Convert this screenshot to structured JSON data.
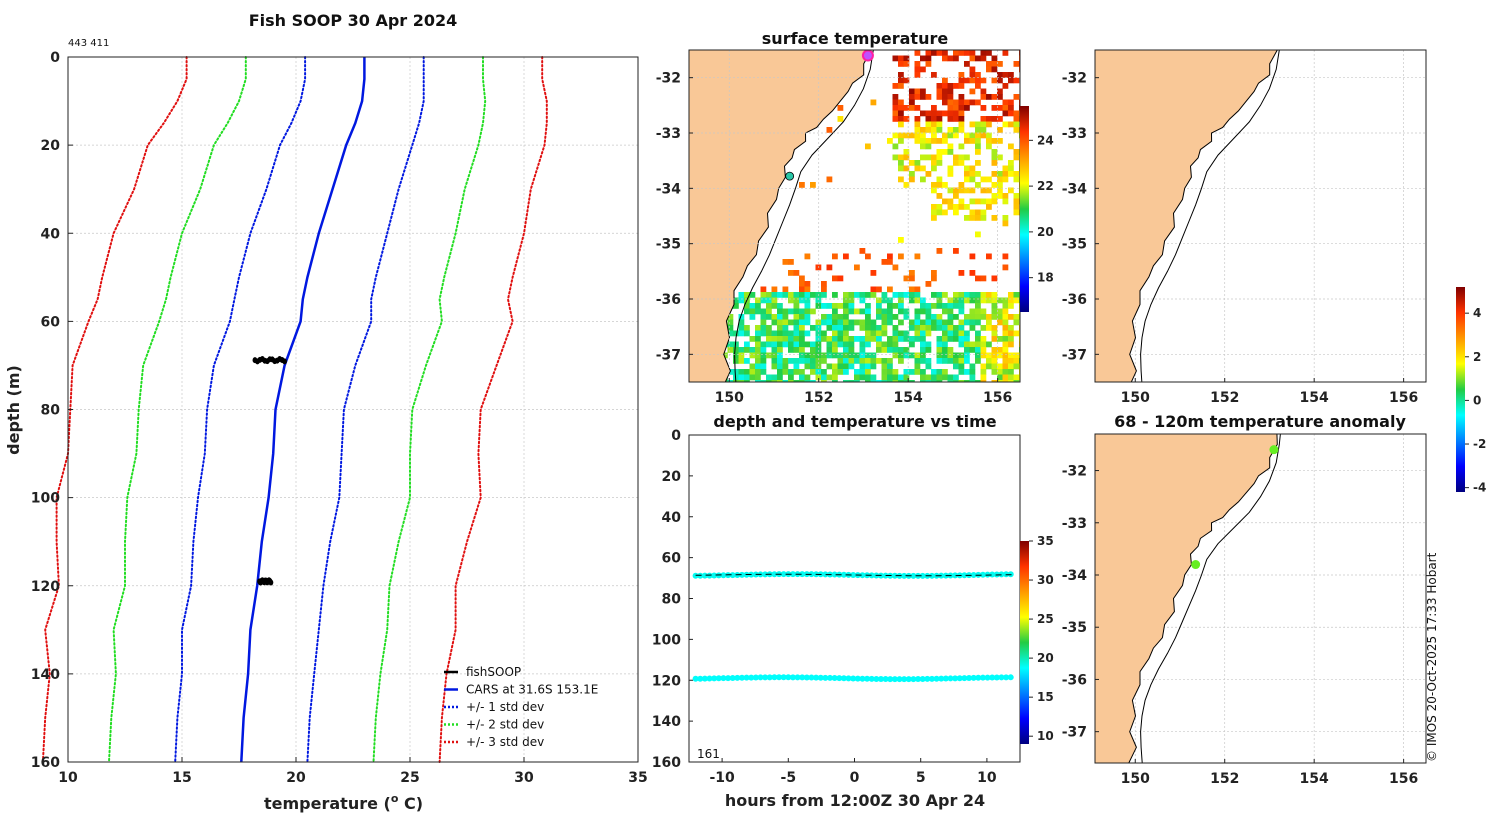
{
  "page": {
    "title": "Fish SOOP 30 Apr 2024",
    "id_text": "443 411",
    "copyright": "© IMOS 20-Oct-2025 17:33 Hobart"
  },
  "colors": {
    "fishSOOP": "#000000",
    "cars": "#0018e0",
    "std1": "#0018e0",
    "std2": "#22dd22",
    "std3": "#e01010",
    "land": "#f9c897",
    "ship_track_points": "#29c7a8",
    "anomaly_points": "#66ee22"
  },
  "chart_data": [
    {
      "id": "profile",
      "type": "line",
      "title": "Fish SOOP 30 Apr 2024",
      "xlabel": "temperature (",
      "xlabel_sup": "o",
      "xlabel_end": " C)",
      "ylabel": "depth (m)",
      "xlim": [
        10,
        35
      ],
      "ylim": [
        0,
        160
      ],
      "y_reversed": true,
      "xticks": [
        10,
        15,
        20,
        25,
        30,
        35
      ],
      "yticks": [
        0,
        20,
        40,
        60,
        80,
        100,
        120,
        140,
        160
      ],
      "grid": true,
      "legend_position": "bottom-right",
      "depths": [
        0,
        5,
        10,
        15,
        20,
        30,
        40,
        50,
        55,
        60,
        70,
        80,
        90,
        100,
        110,
        120,
        130,
        140,
        150,
        160
      ],
      "cars": [
        23.0,
        23.0,
        22.9,
        22.6,
        22.2,
        21.6,
        21.0,
        20.5,
        20.3,
        20.2,
        19.5,
        19.1,
        19.0,
        18.8,
        18.5,
        18.3,
        18.0,
        17.9,
        17.7,
        17.6
      ],
      "cars_std": [
        2.6,
        2.6,
        2.7,
        2.8,
        2.9,
        2.9,
        3.0,
        3.0,
        3.0,
        3.1,
        3.1,
        3.0,
        3.0,
        3.1,
        3.0,
        2.9,
        3.0,
        2.9,
        2.9,
        2.9
      ],
      "series": [
        {
          "name": "fishSOOP",
          "style": "solid",
          "color_key": "fishSOOP"
        },
        {
          "name": "CARS at 31.6S 153.1E",
          "style": "solid",
          "color_key": "cars"
        },
        {
          "name": "+/- 1 std dev",
          "style": "dotted",
          "color_key": "std1"
        },
        {
          "name": "+/- 2 std dev",
          "style": "dotted",
          "color_key": "std2"
        },
        {
          "name": "+/- 3 std dev",
          "style": "dotted",
          "color_key": "std3"
        }
      ],
      "fishsoop_clusters": [
        {
          "depth": 68.8,
          "temp_min": 18.2,
          "temp_max": 19.5
        },
        {
          "depth": 119.0,
          "temp_min": 18.4,
          "temp_max": 18.9
        }
      ]
    },
    {
      "id": "sst_map",
      "type": "heatmap",
      "title": "surface temperature",
      "xlim": [
        149.1,
        156.5
      ],
      "ylim": [
        -37.5,
        -31.5
      ],
      "xticks": [
        150,
        152,
        154,
        156
      ],
      "yticks": [
        -32,
        -33,
        -34,
        -35,
        -36,
        -37
      ],
      "colorbar_ticks": [
        18,
        20,
        22,
        24
      ],
      "colorbar_range": [
        16.5,
        25.5
      ]
    },
    {
      "id": "bathy_map",
      "type": "heatmap",
      "title": "",
      "xlim": [
        149.1,
        156.5
      ],
      "ylim": [
        -37.5,
        -31.5
      ],
      "xticks": [
        150,
        152,
        154,
        156
      ],
      "yticks": [
        -32,
        -33,
        -34,
        -35,
        -36,
        -37
      ]
    },
    {
      "id": "time_depth",
      "type": "scatter",
      "title": "depth and temperature vs time",
      "xlabel": "hours from 12:00Z 30 Apr 24",
      "xlim": [
        -12.5,
        12.5
      ],
      "ylim": [
        0,
        160
      ],
      "y_reversed": true,
      "xticks": [
        -10,
        -5,
        0,
        5,
        10
      ],
      "yticks": [
        0,
        20,
        40,
        60,
        80,
        100,
        120,
        140,
        160
      ],
      "annotation": "161",
      "colorbar_ticks": [
        10,
        15,
        20,
        25,
        30,
        35
      ],
      "colorbar_range": [
        9,
        35
      ],
      "tracks": [
        {
          "depth": 68.5,
          "temperature": 19.0
        },
        {
          "depth": 119.0,
          "temperature": 18.8
        }
      ]
    },
    {
      "id": "anomaly_map",
      "type": "scatter",
      "title": "68 - 120m temperature anomaly",
      "xlim": [
        149.1,
        156.5
      ],
      "ylim": [
        -37.6,
        -31.3
      ],
      "xticks": [
        150,
        152,
        154,
        156
      ],
      "yticks": [
        -32,
        -33,
        -34,
        -35,
        -36,
        -37
      ],
      "points": [
        {
          "lon": 153.1,
          "lat": -31.6
        },
        {
          "lon": 151.35,
          "lat": -33.8
        }
      ],
      "colorbar_ticks": [
        -4,
        -2,
        0,
        2,
        4
      ],
      "colorbar_range": [
        -4.2,
        5.2
      ]
    }
  ]
}
